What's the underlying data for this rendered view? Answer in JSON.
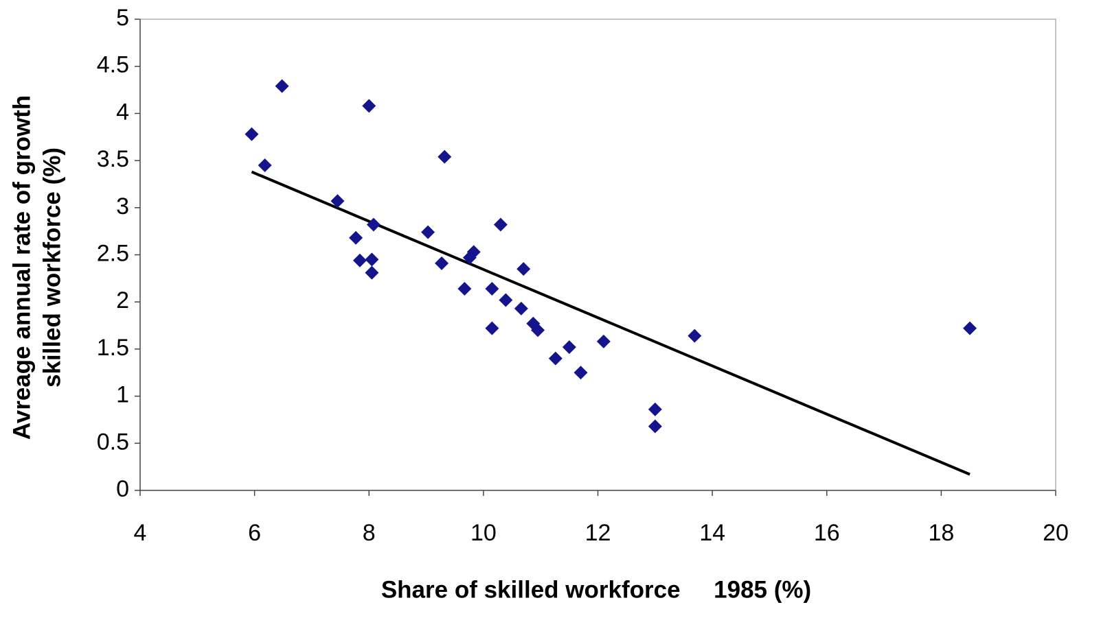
{
  "chart_data": {
    "type": "scatter",
    "x_label": "Share of skilled workforce     1985 (%)",
    "y_label": [
      "Avreage annual rate of growth",
      "skilled workforce (%)"
    ],
    "x": [
      5.95,
      6.18,
      6.48,
      7.45,
      7.77,
      7.84,
      8.0,
      8.05,
      8.05,
      8.08,
      9.03,
      9.27,
      9.32,
      9.67,
      9.76,
      9.83,
      10.15,
      10.15,
      10.3,
      10.39,
      10.66,
      10.7,
      10.87,
      10.95,
      11.26,
      11.5,
      11.7,
      12.1,
      13.0,
      13.0,
      13.69,
      18.5
    ],
    "values": [
      3.78,
      3.45,
      4.29,
      3.07,
      2.68,
      2.44,
      4.08,
      2.45,
      2.31,
      2.82,
      2.74,
      2.41,
      3.54,
      2.14,
      2.47,
      2.53,
      2.14,
      1.72,
      2.82,
      2.02,
      1.93,
      2.35,
      1.77,
      1.7,
      1.4,
      1.52,
      1.25,
      1.58,
      0.86,
      0.68,
      1.64,
      1.72
    ],
    "color": "#14148c",
    "trendline": {
      "x": [
        5.95,
        18.5
      ],
      "values": [
        3.38,
        0.17
      ],
      "color": "#000000"
    },
    "xlim": [
      4,
      20
    ],
    "xticks": [
      4,
      6,
      8,
      10,
      12,
      14,
      16,
      18,
      20
    ],
    "ylim": [
      0,
      5
    ],
    "yticks": [
      0,
      0.5,
      1,
      1.5,
      2,
      2.5,
      3,
      3.5,
      4,
      4.5,
      5
    ],
    "grid": false
  }
}
